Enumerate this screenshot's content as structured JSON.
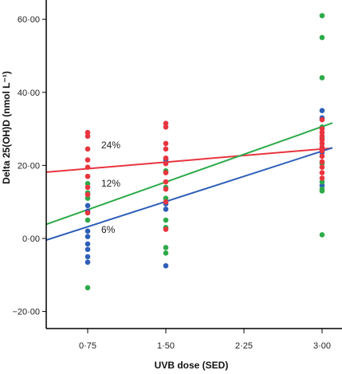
{
  "chart_data": {
    "type": "scatter",
    "title": "",
    "xlabel": "UVB dose (SED)",
    "ylabel": "Delta 25(OH)D (nmol L⁻¹)",
    "xlim": [
      0.3,
      3.1
    ],
    "ylim": [
      -25,
      70
    ],
    "x_ticks": [
      0.75,
      1.5,
      2.25,
      3.0
    ],
    "x_tick_labels": [
      "0·75",
      "1·50",
      "2·25",
      "3·00"
    ],
    "y_ticks": [
      -20,
      0,
      20,
      40,
      60
    ],
    "y_tick_labels": [
      "−20·00",
      "0·00",
      "20·00",
      "40·00",
      "60·00"
    ],
    "grid": false,
    "legend": "none",
    "series": [
      {
        "label": "24%",
        "color": "#e8353f",
        "points": [
          [
            0.75,
            29
          ],
          [
            0.75,
            28
          ],
          [
            0.75,
            24.5
          ],
          [
            0.75,
            21.5
          ],
          [
            0.75,
            19.5
          ],
          [
            0.75,
            17
          ],
          [
            0.75,
            14
          ],
          [
            0.75,
            12
          ],
          [
            0.75,
            7
          ],
          [
            1.5,
            31.5
          ],
          [
            1.5,
            30.5
          ],
          [
            1.5,
            26
          ],
          [
            1.5,
            24.5
          ],
          [
            1.5,
            22
          ],
          [
            1.5,
            20.5
          ],
          [
            1.5,
            18
          ],
          [
            1.5,
            15.5
          ],
          [
            1.5,
            13.5
          ],
          [
            1.5,
            10
          ],
          [
            1.5,
            2.5
          ],
          [
            3.0,
            32.5
          ],
          [
            3.0,
            30
          ],
          [
            3.0,
            29
          ],
          [
            3.0,
            28
          ],
          [
            3.0,
            27
          ],
          [
            3.0,
            26
          ],
          [
            3.0,
            25
          ],
          [
            3.0,
            24
          ],
          [
            3.0,
            22.5
          ],
          [
            3.0,
            21
          ],
          [
            3.0,
            19.5
          ],
          [
            3.0,
            18
          ],
          [
            3.0,
            16.5
          ]
        ],
        "fit": {
          "intercept": 17.3,
          "slope": 2.4
        }
      },
      {
        "label": "12%",
        "color": "#2eaa4a",
        "points": [
          [
            0.75,
            15
          ],
          [
            0.75,
            12.5
          ],
          [
            0.75,
            11
          ],
          [
            0.75,
            5
          ],
          [
            0.75,
            -13.5
          ],
          [
            1.5,
            18.5
          ],
          [
            1.5,
            14
          ],
          [
            1.5,
            11
          ],
          [
            1.5,
            5
          ],
          [
            1.5,
            3
          ],
          [
            1.5,
            -2.5
          ],
          [
            1.5,
            -4
          ],
          [
            3.0,
            61
          ],
          [
            3.0,
            55
          ],
          [
            3.0,
            44
          ],
          [
            3.0,
            30.5
          ],
          [
            3.0,
            27.5
          ],
          [
            3.0,
            20.5
          ],
          [
            3.0,
            15.5
          ],
          [
            3.0,
            13.5
          ],
          [
            3.0,
            13
          ],
          [
            3.0,
            1
          ]
        ],
        "fit": {
          "intercept": 0.3,
          "slope": 10.1
        }
      },
      {
        "label": "6%",
        "color": "#2e5fb8",
        "points": [
          [
            0.75,
            9
          ],
          [
            0.75,
            7.5
          ],
          [
            0.75,
            2
          ],
          [
            0.75,
            0.5
          ],
          [
            0.75,
            -1.5
          ],
          [
            0.75,
            -3
          ],
          [
            0.75,
            -5
          ],
          [
            0.75,
            -6.5
          ],
          [
            1.5,
            21.5
          ],
          [
            1.5,
            9.5
          ],
          [
            1.5,
            8
          ],
          [
            1.5,
            -7.5
          ],
          [
            3.0,
            35
          ],
          [
            3.0,
            33
          ],
          [
            3.0,
            23.5
          ],
          [
            3.0,
            14.5
          ]
        ],
        "fit": {
          "intercept": -3.7,
          "slope": 9.2
        }
      }
    ]
  }
}
